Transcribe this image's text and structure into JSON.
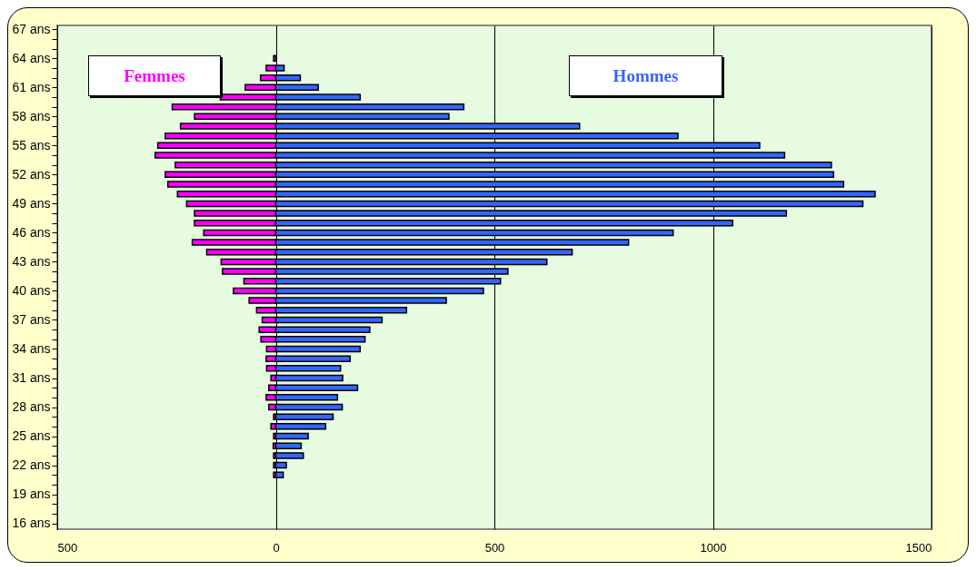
{
  "chart_data": {
    "type": "bar",
    "orientation": "horizontal",
    "x": [
      64,
      63,
      62,
      61,
      60,
      59,
      58,
      57,
      56,
      55,
      54,
      53,
      52,
      51,
      50,
      49,
      48,
      47,
      46,
      45,
      44,
      43,
      42,
      41,
      40,
      39,
      38,
      37,
      36,
      35,
      34,
      33,
      32,
      31,
      30,
      29,
      28,
      27,
      26,
      25,
      24,
      23,
      22,
      21
    ],
    "series": [
      {
        "name": "Femmes",
        "color": "#ff00ff",
        "values": [
          -5,
          -22,
          -35,
          -70,
          -127,
          -237,
          -186,
          -218,
          -253,
          -270,
          -276,
          -230,
          -253,
          -247,
          -225,
          -204,
          -186,
          -186,
          -165,
          -191,
          -158,
          -125,
          -122,
          -73,
          -97,
          -61,
          -44,
          -31,
          -38,
          -34,
          -21,
          -22,
          -21,
          -11,
          -16,
          -22,
          -16,
          -5,
          -11,
          -5,
          -6,
          -5,
          -5,
          -5
        ]
      },
      {
        "name": "Hommes",
        "color": "#3366ff",
        "values": [
          null,
          19,
          56,
          97,
          193,
          430,
          396,
          695,
          920,
          1107,
          1164,
          1271,
          1276,
          1299,
          1371,
          1343,
          1168,
          1045,
          909,
          807,
          678,
          620,
          531,
          514,
          475,
          390,
          299,
          243,
          215,
          204,
          193,
          170,
          148,
          153,
          187,
          141,
          152,
          131,
          114,
          74,
          58,
          63,
          24,
          17
        ]
      }
    ],
    "xlim": [
      -500,
      1500
    ],
    "xticks": [
      {
        "value": -500,
        "label": "500"
      },
      0,
      500,
      1000,
      1500
    ],
    "ylim": [
      15.4,
      67.4
    ],
    "yticks": [
      {
        "value": 16,
        "label": "16 ans"
      },
      {
        "value": 17,
        "label": null
      },
      {
        "value": 18,
        "label": null
      },
      {
        "value": 19,
        "label": "19 ans"
      },
      {
        "value": 20,
        "label": null
      },
      {
        "value": 21,
        "label": null
      },
      {
        "value": 22,
        "label": "22 ans"
      },
      {
        "value": 23,
        "label": null
      },
      {
        "value": 24,
        "label": null
      },
      {
        "value": 25,
        "label": "25 ans"
      },
      {
        "value": 26,
        "label": null
      },
      {
        "value": 27,
        "label": null
      },
      {
        "value": 28,
        "label": "28 ans"
      },
      {
        "value": 29,
        "label": null
      },
      {
        "value": 30,
        "label": null
      },
      {
        "value": 31,
        "label": "31 ans"
      },
      {
        "value": 32,
        "label": null
      },
      {
        "value": 33,
        "label": null
      },
      {
        "value": 34,
        "label": "34 ans"
      },
      {
        "value": 35,
        "label": null
      },
      {
        "value": 36,
        "label": null
      },
      {
        "value": 37,
        "label": "37 ans"
      },
      {
        "value": 38,
        "label": null
      },
      {
        "value": 39,
        "label": null
      },
      {
        "value": 40,
        "label": "40 ans"
      },
      {
        "value": 41,
        "label": null
      },
      {
        "value": 42,
        "label": null
      },
      {
        "value": 43,
        "label": "43 ans"
      },
      {
        "value": 44,
        "label": null
      },
      {
        "value": 45,
        "label": null
      },
      {
        "value": 46,
        "label": "46 ans"
      },
      {
        "value": 47,
        "label": null
      },
      {
        "value": 48,
        "label": null
      },
      {
        "value": 49,
        "label": "49 ans"
      },
      {
        "value": 50,
        "label": null
      },
      {
        "value": 51,
        "label": null
      },
      {
        "value": 52,
        "label": "52 ans"
      },
      {
        "value": 53,
        "label": null
      },
      {
        "value": 54,
        "label": null
      },
      {
        "value": 55,
        "label": "55 ans"
      },
      {
        "value": 56,
        "label": null
      },
      {
        "value": 57,
        "label": null
      },
      {
        "value": 58,
        "label": "58 ans"
      },
      {
        "value": 59,
        "label": null
      },
      {
        "value": 60,
        "label": null
      },
      {
        "value": 61,
        "label": "61 ans"
      },
      {
        "value": 62,
        "label": null
      },
      {
        "value": 63,
        "label": null
      },
      {
        "value": 64,
        "label": "64 ans"
      },
      {
        "value": 65,
        "label": null
      },
      {
        "value": 66,
        "label": null
      },
      {
        "value": 67,
        "label": "67 ans"
      }
    ],
    "grid": "x",
    "stacked": true,
    "legend": "top"
  }
}
